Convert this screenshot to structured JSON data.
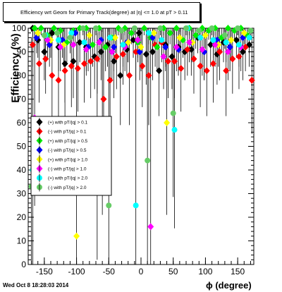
{
  "chart_data": {
    "type": "scatter",
    "title": "Efficiency wrt Geom for Primary Track(degree) at |η| <= 1.0 at pT > 0.11",
    "xlabel": "ϕ (degree)",
    "ylabel": "Efficiency (%)",
    "xlim": [
      -175,
      175
    ],
    "ylim": [
      0,
      100
    ],
    "x_ticks": [
      "-150",
      "-100",
      "-50",
      "0",
      "50",
      "100",
      "150"
    ],
    "y_ticks": [
      "0",
      "10",
      "20",
      "30",
      "40",
      "50",
      "60",
      "70",
      "80",
      "90",
      "100"
    ],
    "grid": false,
    "legend_position": "left-middle",
    "series": [
      {
        "name": "(+) with pT/|q| > 0.1",
        "color": "#000000",
        "x": [
          -168,
          -160,
          -150,
          -138,
          -128,
          -118,
          -105,
          -95,
          -85,
          -72,
          -62,
          -52,
          -42,
          -32,
          -22,
          -12,
          -3,
          8,
          18,
          28,
          38,
          48,
          58,
          68,
          78,
          88,
          98,
          108,
          118,
          128,
          138,
          148,
          158,
          168
        ],
        "y": [
          100,
          95,
          90,
          98,
          92,
          85,
          86,
          94,
          92,
          88,
          90,
          93,
          86,
          80,
          91,
          95,
          98,
          89,
          90,
          82,
          93,
          88,
          92,
          90,
          91,
          96,
          90,
          93,
          89,
          94,
          92,
          95,
          90,
          93
        ]
      },
      {
        "name": "(-) with pT/|q| > 0.1",
        "color": "#ff0000",
        "x": [
          -168,
          -158,
          -148,
          -138,
          -128,
          -118,
          -108,
          -98,
          -88,
          -78,
          -68,
          -58,
          -48,
          -38,
          -28,
          -18,
          -8,
          2,
          12,
          22,
          32,
          42,
          52,
          62,
          72,
          82,
          92,
          102,
          112,
          122,
          132,
          142,
          152,
          162,
          172
        ],
        "y": [
          93,
          85,
          87,
          80,
          78,
          82,
          84,
          83,
          85,
          86,
          87,
          70,
          78,
          88,
          89,
          80,
          90,
          84,
          80,
          93,
          94,
          86,
          86,
          83,
          91,
          87,
          84,
          82,
          85,
          90,
          82,
          87,
          88,
          92,
          78
        ]
      },
      {
        "name": "(+) with pT/|q| > 0.5",
        "color": "#00ee00",
        "x": [
          -165,
          -155,
          -145,
          -135,
          -125,
          -115,
          -105,
          -95,
          -85,
          -75,
          -65,
          -55,
          -45,
          -35,
          -25,
          -15,
          -5,
          5,
          15,
          25,
          35,
          45,
          55,
          65,
          75,
          85,
          95,
          105,
          115,
          125,
          135,
          145,
          155,
          165
        ],
        "y": [
          100,
          100,
          97,
          100,
          99,
          94,
          99,
          100,
          100,
          93,
          100,
          92,
          96,
          100,
          100,
          98,
          94,
          100,
          96,
          92,
          100,
          98,
          100,
          95,
          100,
          97,
          100,
          99,
          100,
          96,
          100,
          99,
          100,
          97
        ]
      },
      {
        "name": "(-) with pT/|q| > 0.5",
        "color": "#0000ff",
        "x": [
          -162,
          -142,
          -122,
          -102,
          -82,
          -62,
          -42,
          -22,
          -2,
          18,
          38,
          58,
          78,
          98,
          118,
          138,
          158
        ],
        "y": [
          96,
          93,
          95,
          98,
          92,
          95,
          92,
          94,
          90,
          96,
          92,
          91,
          94,
          90,
          95,
          92,
          96
        ]
      },
      {
        "name": "(+) with pT/|q| > 1.0",
        "color": "#ffff00",
        "x": [
          -160,
          -140,
          -120,
          -100,
          -80,
          -60,
          -40,
          -20,
          0,
          20,
          40,
          60,
          80,
          100,
          120,
          140,
          160
        ],
        "y": [
          98,
          95,
          93,
          12,
          97,
          60,
          96,
          94,
          92,
          98,
          60,
          96,
          94,
          97,
          93,
          95,
          98
        ]
      },
      {
        "name": "(-) with pT/|q| > 1.0",
        "color": "#ff00ff",
        "x": [
          -165,
          -145,
          -125,
          -105,
          -85,
          -65,
          -45,
          -25,
          -5,
          15,
          35,
          55,
          75,
          95,
          115,
          135,
          155
        ],
        "y": [
          62,
          95,
          92,
          93,
          91,
          94,
          90,
          92,
          95,
          16,
          88,
          92,
          94,
          91,
          93,
          90,
          92
        ]
      },
      {
        "name": "(+) with pT/|q| > 2.0",
        "color": "#00ffff",
        "x": [
          -168,
          -148,
          -128,
          -108,
          -88,
          -68,
          -48,
          -28,
          -8,
          12,
          32,
          52,
          72,
          92,
          112,
          132,
          152,
          168
        ],
        "y": [
          40,
          97,
          95,
          98,
          94,
          50,
          96,
          93,
          25,
          98,
          95,
          57,
          100,
          96,
          95,
          94,
          93,
          96
        ]
      },
      {
        "name": "(-) with pT/|q| > 2.0",
        "color": "#66cc66",
        "x": [
          -170,
          -150,
          -130,
          -110,
          -90,
          -70,
          -50,
          -30,
          -10,
          10,
          30,
          50,
          70,
          90,
          110,
          130,
          150,
          170
        ],
        "y": [
          33,
          97,
          98,
          96,
          100,
          100,
          25,
          99,
          100,
          44,
          100,
          64,
          100,
          99,
          100,
          97,
          100,
          99
        ]
      }
    ]
  },
  "stamp": "Wed Oct  8 18:28:03 2014"
}
